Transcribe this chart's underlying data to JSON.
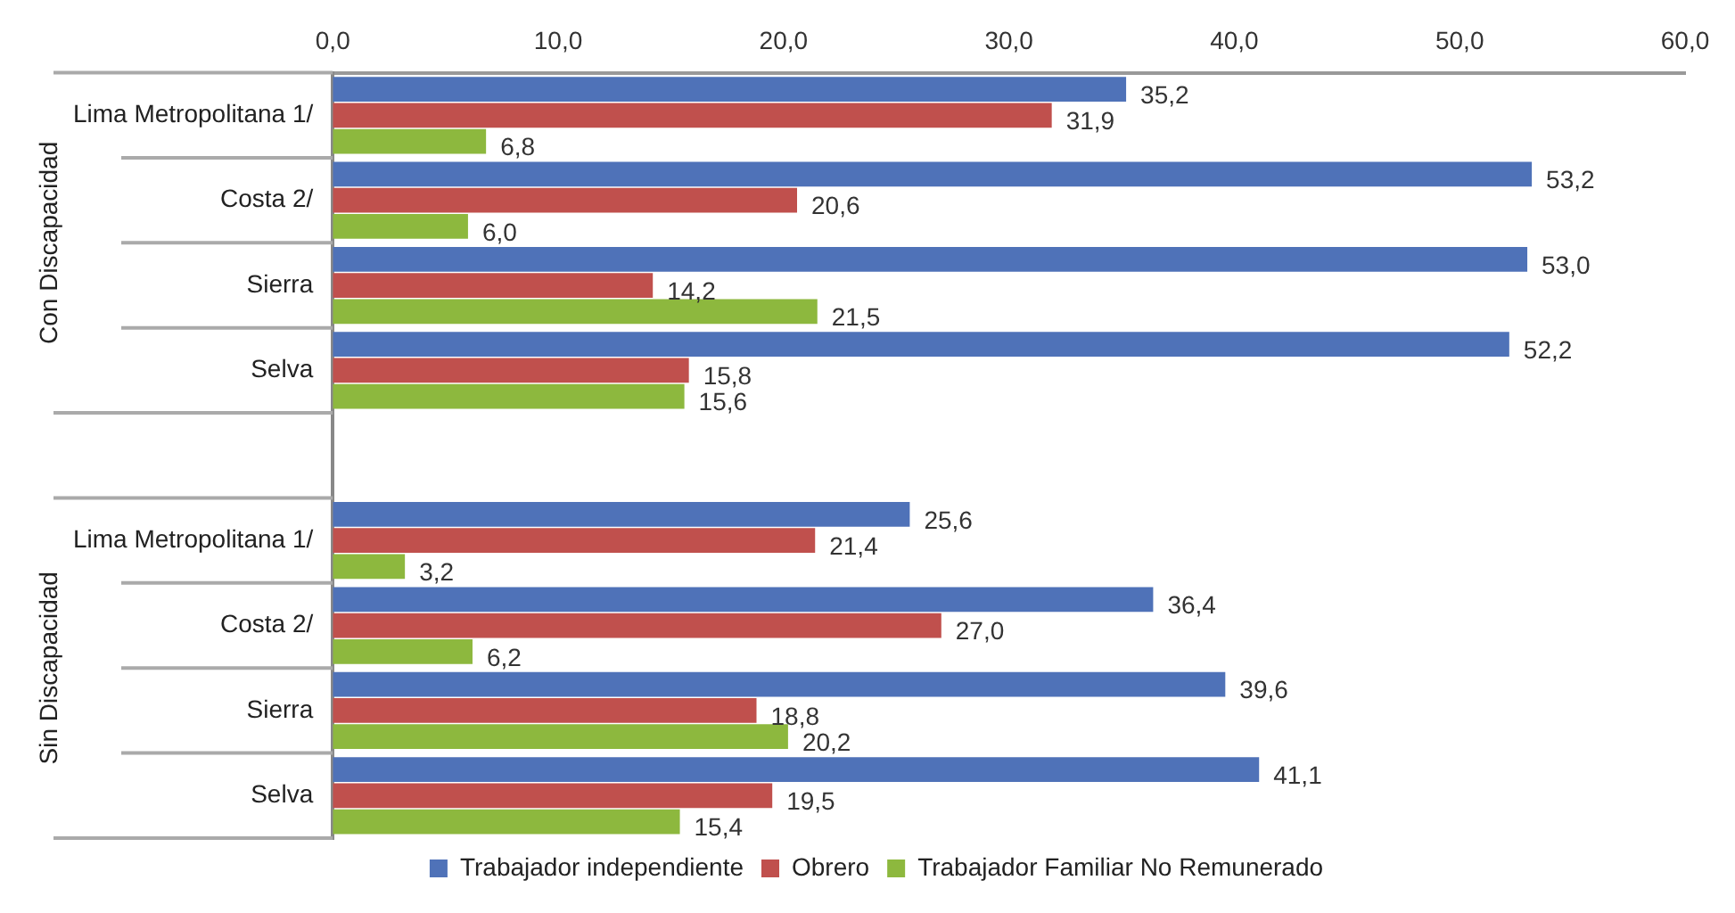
{
  "chart_data": {
    "type": "bar",
    "orientation": "horizontal",
    "categories": [
      "Lima Metropolitana 1/",
      "Costa 2/",
      "Sierra",
      "Selva",
      null,
      "Lima Metropolitana 1/",
      "Costa 2/",
      "Sierra",
      "Selva"
    ],
    "series": [
      {
        "name": "Trabajador independiente",
        "color": "#4f72b8",
        "values": [
          35.2,
          53.2,
          53.0,
          52.2,
          null,
          25.6,
          36.4,
          39.6,
          41.1
        ],
        "value_labels": [
          "35,2",
          "53,2",
          "53,0",
          "52,2",
          null,
          "25,6",
          "36,4",
          "39,6",
          "41,1"
        ]
      },
      {
        "name": "Obrero",
        "color": "#c0504d",
        "values": [
          31.9,
          20.6,
          14.2,
          15.8,
          null,
          21.4,
          27.0,
          18.8,
          19.5
        ],
        "value_labels": [
          "31,9",
          "20,6",
          "14,2",
          "15,8",
          null,
          "21,4",
          "27,0",
          "18,8",
          "19,5"
        ]
      },
      {
        "name": "Trabajador Familiar No Remunerado",
        "color": "#8db83e",
        "values": [
          6.8,
          6.0,
          21.5,
          15.6,
          null,
          3.2,
          6.2,
          20.2,
          15.4
        ],
        "value_labels": [
          "6,8",
          "6,0",
          "21,5",
          "15,6",
          null,
          "3,2",
          "6,2",
          "20,2",
          "15,4"
        ]
      }
    ],
    "xlim": [
      0,
      60
    ],
    "xticks": [
      {
        "value": 0,
        "label": "0,0"
      },
      {
        "value": 10,
        "label": "10,0"
      },
      {
        "value": 20,
        "label": "20,0"
      },
      {
        "value": 30,
        "label": "30,0"
      },
      {
        "value": 40,
        "label": "40,0"
      },
      {
        "value": 50,
        "label": "50,0"
      },
      {
        "value": 60,
        "label": "60,0"
      }
    ],
    "annotations": [
      "Con Discapacidad",
      "Sin Discapacidad"
    ],
    "legend": "bottom"
  }
}
